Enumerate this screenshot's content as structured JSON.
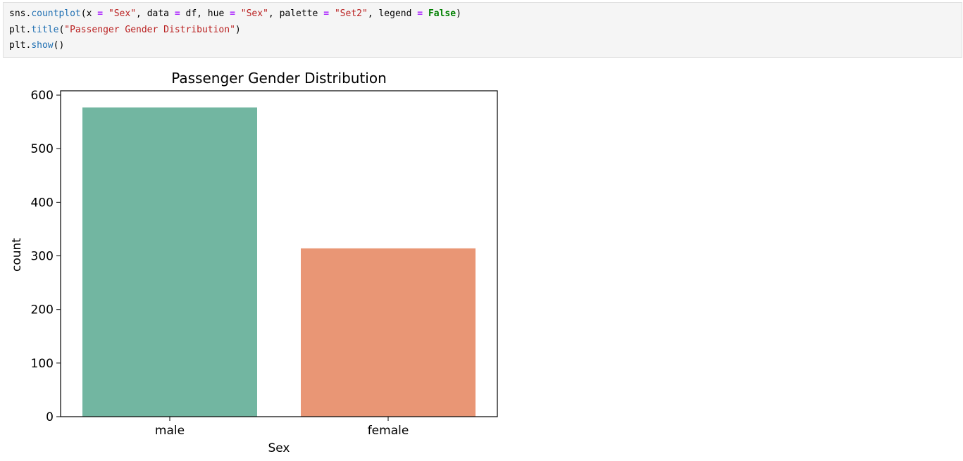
{
  "code_cell": {
    "lines": [
      [
        {
          "t": "var",
          "s": "sns."
        },
        {
          "t": "fn",
          "s": "countplot"
        },
        {
          "t": "var",
          "s": "(x "
        },
        {
          "t": "op",
          "s": "="
        },
        {
          "t": "var",
          "s": " "
        },
        {
          "t": "str",
          "s": "\"Sex\""
        },
        {
          "t": "var",
          "s": ", data "
        },
        {
          "t": "op",
          "s": "="
        },
        {
          "t": "var",
          "s": " df, hue "
        },
        {
          "t": "op",
          "s": "="
        },
        {
          "t": "var",
          "s": " "
        },
        {
          "t": "str",
          "s": "\"Sex\""
        },
        {
          "t": "var",
          "s": ", palette "
        },
        {
          "t": "op",
          "s": "="
        },
        {
          "t": "var",
          "s": " "
        },
        {
          "t": "str",
          "s": "\"Set2\""
        },
        {
          "t": "var",
          "s": ", legend "
        },
        {
          "t": "op",
          "s": "="
        },
        {
          "t": "var",
          "s": " "
        },
        {
          "t": "kw",
          "s": "False"
        },
        {
          "t": "var",
          "s": ")"
        }
      ],
      [
        {
          "t": "var",
          "s": "plt."
        },
        {
          "t": "fn",
          "s": "title"
        },
        {
          "t": "var",
          "s": "("
        },
        {
          "t": "str",
          "s": "\"Passenger Gender Distribution\""
        },
        {
          "t": "var",
          "s": ")"
        }
      ],
      [
        {
          "t": "var",
          "s": "plt."
        },
        {
          "t": "fn",
          "s": "show"
        },
        {
          "t": "var",
          "s": "()"
        }
      ]
    ]
  },
  "chart_data": {
    "type": "bar",
    "title": "Passenger Gender Distribution",
    "xlabel": "Sex",
    "ylabel": "count",
    "categories": [
      "male",
      "female"
    ],
    "values": [
      577,
      314
    ],
    "colors": [
      "#72b6a1",
      "#e99675"
    ],
    "ylim": [
      0,
      608
    ],
    "yticks": [
      0,
      100,
      200,
      300,
      400,
      500,
      600
    ],
    "grid": false,
    "legend": false
  }
}
